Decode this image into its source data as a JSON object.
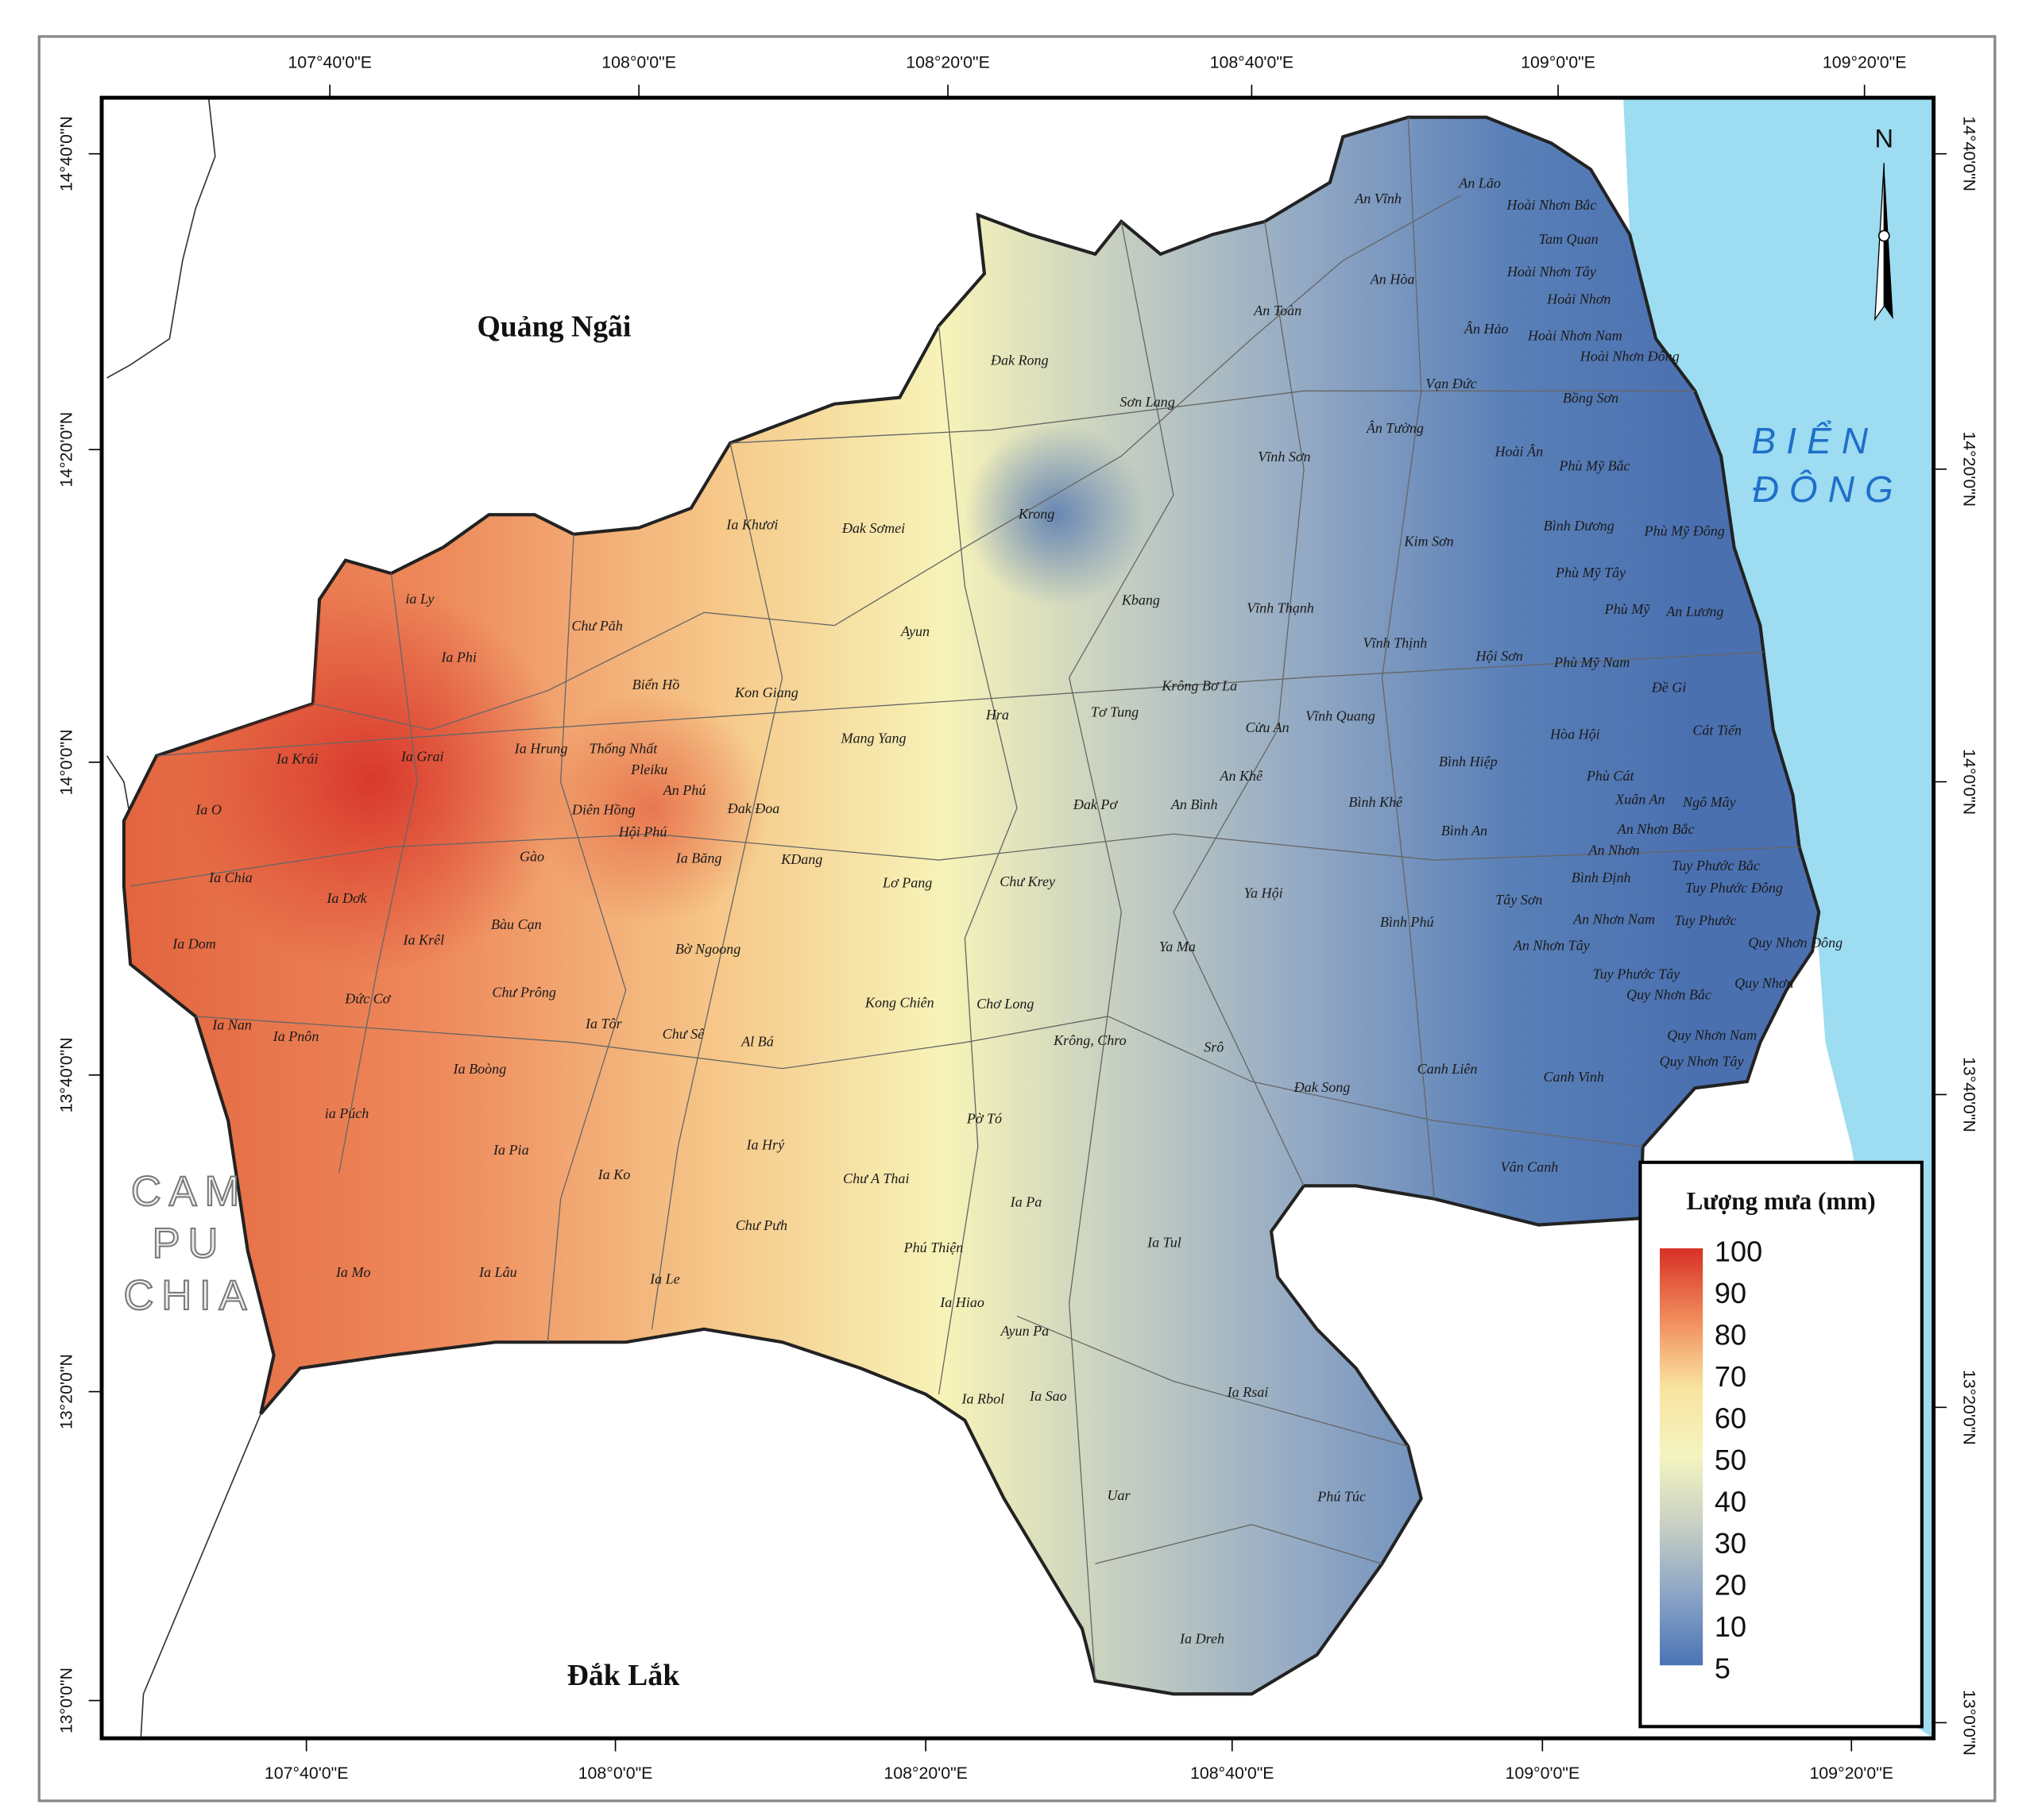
{
  "map": {
    "regions": {
      "north": "Quảng Ngãi",
      "south": "Đắk Lắk",
      "west": [
        "CAM",
        "PU",
        "CHIA"
      ],
      "sea": [
        "BIỂN",
        "ĐÔNG"
      ]
    },
    "north_arrow": "N",
    "graticule": {
      "top": [
        "107°40'0\"E",
        "108°0'0\"E",
        "108°20'0\"E",
        "108°40'0\"E",
        "109°0'0\"E",
        "109°20'0\"E"
      ],
      "bottom": [
        "107°40'0\"E",
        "108°0'0\"E",
        "108°20'0\"E",
        "108°40'0\"E",
        "109°0'0\"E",
        "109°20'0\"E"
      ],
      "left": [
        "14°40'0\"N",
        "14°20'0\"N",
        "14°0'0\"N",
        "13°40'0\"N",
        "13°20'0\"N",
        "13°0'0\"N"
      ],
      "right": [
        "14°40'0\"N",
        "14°20'0\"N",
        "14°0'0\"N",
        "13°40'0\"N",
        "13°20'0\"N",
        "13°0'0\"N"
      ]
    },
    "legend": {
      "title": "Lượng mưa (mm)",
      "ticks": [
        100,
        90,
        80,
        70,
        60,
        50,
        40,
        30,
        20,
        10,
        5
      ],
      "colors": [
        "#d73027",
        "#f08a5a",
        "#f9e3a0",
        "#f4f4c0",
        "#c7cfc4",
        "#8aa4c6",
        "#4a74b4"
      ]
    },
    "places": [
      "An Vĩnh",
      "An Lão",
      "Hoài Nhơn Bắc",
      "Tam Quan",
      "An Hòa",
      "Hoài Nhơn Tây",
      "Hoài Nhơn",
      "An Toàn",
      "Ân Hảo",
      "Hoài Nhơn Nam",
      "Hoài Nhơn Đông",
      "Đak Rong",
      "Vạn Đức",
      "Bồng Sơn",
      "Sơn Lang",
      "Ân Tường",
      "Vĩnh Sơn",
      "Hoài Ân",
      "Phù Mỹ Bắc",
      "Krong",
      "Ia Khươi",
      "Đak Sơmei",
      "Bình Dương",
      "Phù Mỹ Đông",
      "Kim Sơn",
      "Phù Mỹ Tây",
      "ia Ly",
      "Kbang",
      "Vĩnh Thạnh",
      "Phù Mỹ",
      "An Lương",
      "Chư Păh",
      "Ayun",
      "Vĩnh Thịnh",
      "Ia Phi",
      "Biển Hồ",
      "Kon Giang",
      "Krông Bơ La",
      "Hội Sơn",
      "Phù Mỹ Nam",
      "Đề Gi",
      "Hra",
      "Tơ Tung",
      "Vĩnh Quang",
      "Cửu An",
      "Hòa Hội",
      "Cát Tiến",
      "Mang Yang",
      "Ia Hrung",
      "Thống Nhất",
      "Ia Krái",
      "Ia Grai",
      "Pleiku",
      "Bình Hiệp",
      "An Khê",
      "Phù Cát",
      "Ia O",
      "An Phú",
      "Diên Hồng",
      "Đak Đoa",
      "Đak Pơ",
      "An Bình",
      "Bình Khê",
      "Xuân An",
      "Ngô Mây",
      "Hội Phú",
      "Bình An",
      "An Nhơn Bắc",
      "An Nhơn",
      "Ia Chia",
      "Gào",
      "Ia Băng",
      "KDang",
      "Tuy Phước Bắc",
      "Bình Định",
      "Lơ Pang",
      "Chư Krey",
      "Tuy Phước Đông",
      "Ia Dơk",
      "Ya Hội",
      "Tây Sơn",
      "Bàu Cạn",
      "Bình Phú",
      "An Nhơn Nam",
      "Tuy Phước",
      "Ia Dom",
      "Ia Krêl",
      "Bờ Ngoong",
      "Ya Ma",
      "An Nhơn Tây",
      "Quy Nhơn Đông",
      "Tuy Phước Tây",
      "Quy Nhơn",
      "Chư Prông",
      "Đức Cơ",
      "Quy Nhơn Bắc",
      "Kong Chiên",
      "Chơ Long",
      "Ia Nan",
      "Ia Tôr",
      "Ia Pnôn",
      "Chư Sê",
      "Al Bá",
      "Krông, Chro",
      "Srô",
      "Quy Nhơn Nam",
      "Quy Nhơn Tây",
      "Ia Boòng",
      "Canh Liên",
      "Canh Vinh",
      "Đak Song",
      "ia Púch",
      "Pờ Tó",
      "Ia Hrý",
      "Ia Pia",
      "Vân Canh",
      "Ia Ko",
      "Chư A Thai",
      "Ia Pa",
      "Chư Pưh",
      "Ia Tul",
      "Phú Thiện",
      "Ia Mo",
      "Ia Lâu",
      "Ia Le",
      "Ia Hiao",
      "Ayun Pa",
      "Ia Rsai",
      "Ia Rbol",
      "Ia Sao",
      "Phú Túc",
      "Uar",
      "Ia Dreh"
    ]
  }
}
